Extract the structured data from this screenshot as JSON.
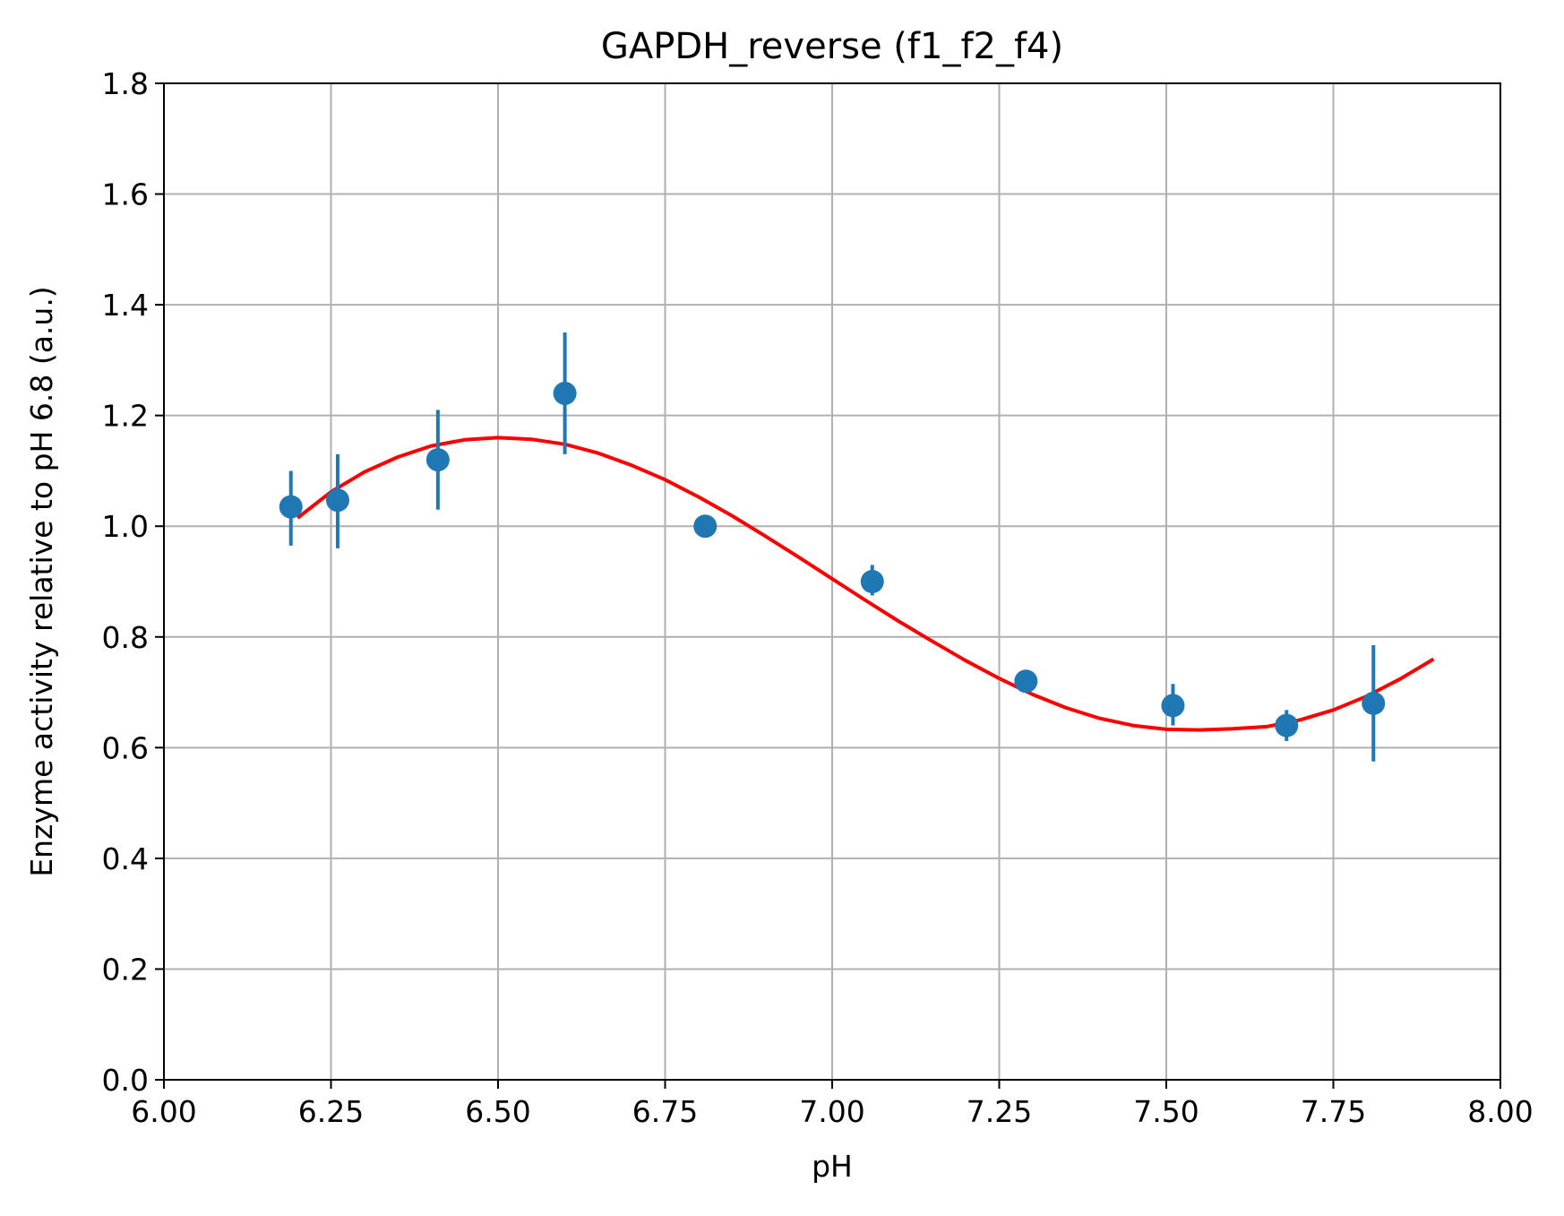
{
  "chart_data": {
    "type": "scatter",
    "title": "GAPDH_reverse (f1_f2_f4)",
    "xlabel": "pH",
    "ylabel": "Enzyme activity relative to pH 6.8 (a.u.)",
    "xlim": [
      6.0,
      8.0
    ],
    "ylim": [
      0.0,
      1.8
    ],
    "xticks": [
      "6.00",
      "6.25",
      "6.50",
      "6.75",
      "7.00",
      "7.25",
      "7.50",
      "7.75",
      "8.00"
    ],
    "yticks": [
      "0.0",
      "0.2",
      "0.4",
      "0.6",
      "0.8",
      "1.0",
      "1.2",
      "1.4",
      "1.6",
      "1.8"
    ],
    "grid": true,
    "series": [
      {
        "kind": "points-with-errorbars",
        "color": "#1f77b4",
        "points": [
          {
            "x": 6.19,
            "y": 1.035,
            "err_low": 0.965,
            "err_high": 1.1
          },
          {
            "x": 6.26,
            "y": 1.047,
            "err_low": 0.96,
            "err_high": 1.13
          },
          {
            "x": 6.41,
            "y": 1.12,
            "err_low": 1.03,
            "err_high": 1.21
          },
          {
            "x": 6.6,
            "y": 1.24,
            "err_low": 1.13,
            "err_high": 1.35
          },
          {
            "x": 6.81,
            "y": 1.0,
            "err_low": 1.0,
            "err_high": 1.0
          },
          {
            "x": 7.06,
            "y": 0.9,
            "err_low": 0.875,
            "err_high": 0.93
          },
          {
            "x": 7.29,
            "y": 0.72,
            "err_low": 0.71,
            "err_high": 0.725
          },
          {
            "x": 7.51,
            "y": 0.676,
            "err_low": 0.64,
            "err_high": 0.715
          },
          {
            "x": 7.68,
            "y": 0.64,
            "err_low": 0.612,
            "err_high": 0.668
          },
          {
            "x": 7.81,
            "y": 0.68,
            "err_low": 0.575,
            "err_high": 0.785
          }
        ]
      },
      {
        "kind": "fit-line",
        "color": "#ff0000",
        "x": [
          6.2,
          6.25,
          6.3,
          6.35,
          6.4,
          6.45,
          6.5,
          6.55,
          6.6,
          6.65,
          6.7,
          6.75,
          6.8,
          6.85,
          6.9,
          6.95,
          7.0,
          7.05,
          7.1,
          7.15,
          7.2,
          7.25,
          7.3,
          7.35,
          7.4,
          7.45,
          7.5,
          7.55,
          7.6,
          7.65,
          7.7,
          7.75,
          7.8,
          7.85,
          7.9
        ],
        "y": [
          1.015,
          1.062,
          1.098,
          1.125,
          1.145,
          1.156,
          1.16,
          1.157,
          1.148,
          1.132,
          1.11,
          1.084,
          1.053,
          1.019,
          0.982,
          0.944,
          0.905,
          0.866,
          0.828,
          0.792,
          0.757,
          0.725,
          0.696,
          0.672,
          0.653,
          0.64,
          0.633,
          0.632,
          0.634,
          0.638,
          0.65,
          0.668,
          0.693,
          0.724,
          0.76
        ]
      }
    ]
  }
}
